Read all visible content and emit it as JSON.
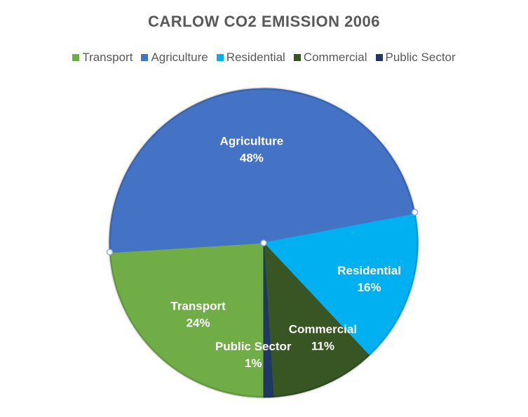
{
  "chart_data": {
    "type": "pie",
    "title": "CARLOW CO2 EMISSION 2006",
    "legend_position": "top",
    "categories": [
      "Transport",
      "Agriculture",
      "Residential",
      "Commercial",
      "Public Sector"
    ],
    "values": [
      24,
      48,
      16,
      11,
      1
    ],
    "value_labels": [
      "24%",
      "48%",
      "16%",
      "11%",
      "1%"
    ],
    "colors": [
      "#70AD47",
      "#4472C4",
      "#00B0F0",
      "#375623",
      "#1F3864"
    ]
  }
}
